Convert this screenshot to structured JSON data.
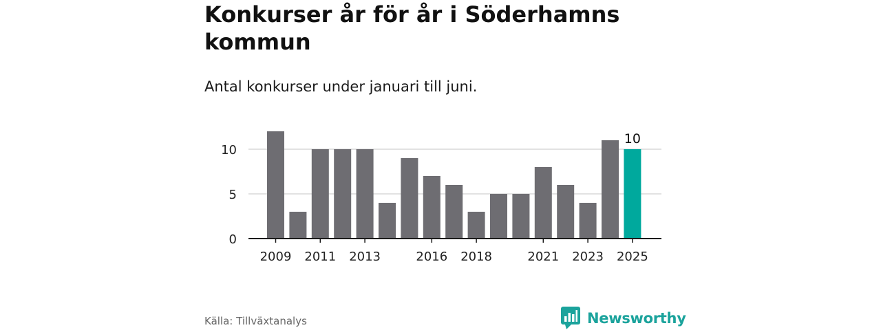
{
  "header": {
    "title": "Konkurser år för år i Söderhamns kommun",
    "subtitle": "Antal konkurser under januari till juni."
  },
  "footer": {
    "source": "Källa: Tillväxtanalys",
    "brand": "Newsworthy"
  },
  "icons": {
    "brand_logo": "bar-chart-speech-bubble-icon"
  },
  "colors": {
    "bar": "#6e6d72",
    "highlight": "#00a99d",
    "brand": "#1ba39c",
    "grid": "#d9d9d9",
    "axis": "#1a1a1a"
  },
  "chart_data": {
    "type": "bar",
    "title": "Konkurser år för år i Söderhamns kommun",
    "subtitle": "Antal konkurser under januari till juni.",
    "xlabel": "",
    "ylabel": "",
    "categories": [
      "2009",
      "2010",
      "2011",
      "2012",
      "2013",
      "2014",
      "2015",
      "2016",
      "2017",
      "2018",
      "2019",
      "2020",
      "2021",
      "2022",
      "2023",
      "2024",
      "2025"
    ],
    "values": [
      12,
      3,
      10,
      10,
      10,
      4,
      9,
      7,
      6,
      3,
      5,
      5,
      8,
      6,
      4,
      11,
      10
    ],
    "x_tick_labels": [
      "2009",
      "2011",
      "2013",
      "2016",
      "2018",
      "2021",
      "2023",
      "2025"
    ],
    "y_ticks": [
      0,
      5,
      10
    ],
    "ylim": [
      0,
      12
    ],
    "grid": true,
    "highlight_category": "2025",
    "annotations": [
      {
        "category": "2025",
        "text": "10"
      }
    ]
  }
}
